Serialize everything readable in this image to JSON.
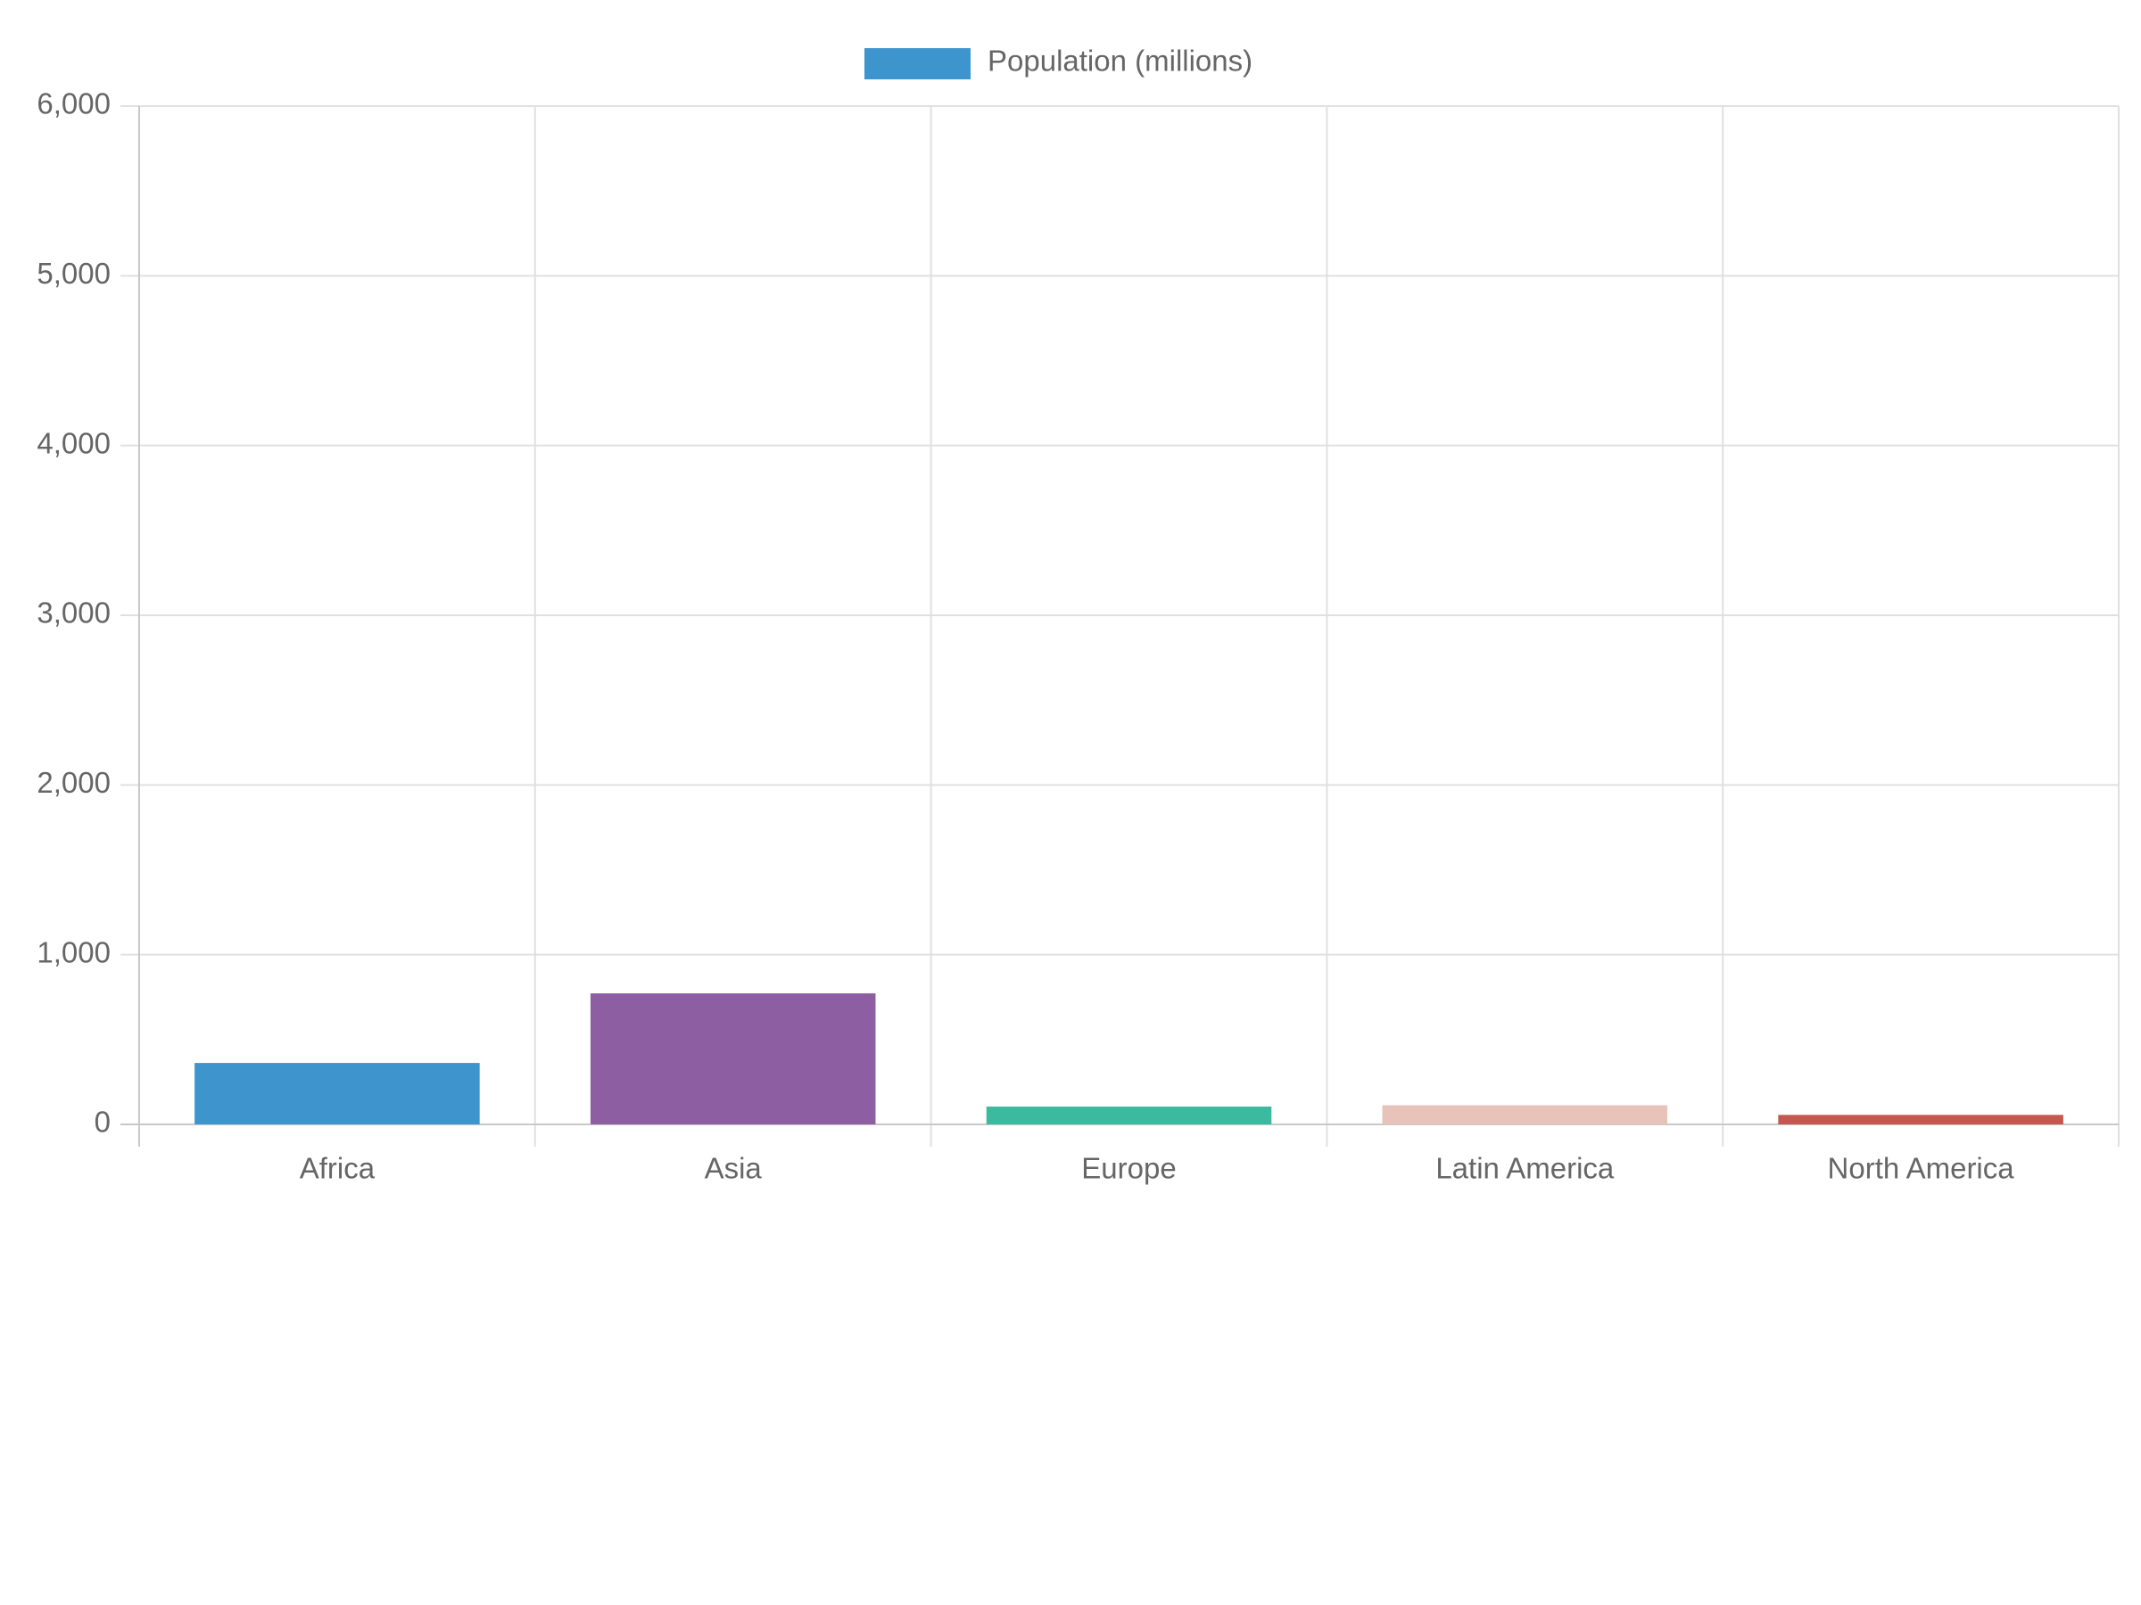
{
  "chart_data": {
    "type": "bar",
    "categories": [
      "Africa",
      "Asia",
      "Europe",
      "Latin America",
      "North America"
    ],
    "series": [
      {
        "name": "Population (millions)",
        "colors": [
          "#3e95cd",
          "#8e5ea2",
          "#3cba9f",
          "#e8c3b9",
          "#c45850"
        ],
        "values": [
          362,
          772,
          105,
          113,
          56
        ]
      }
    ],
    "ylim": [
      0,
      6000
    ],
    "yticks": [
      0,
      {
        "value": 1000,
        "label": "1,000"
      },
      {
        "value": 2000,
        "label": "2,000"
      },
      {
        "value": 3000,
        "label": "3,000"
      },
      {
        "value": 4000,
        "label": "4,000"
      },
      {
        "value": 5000,
        "label": "5,000"
      },
      {
        "value": 6000,
        "label": "6,000"
      }
    ],
    "grid": true,
    "legend": "top"
  }
}
